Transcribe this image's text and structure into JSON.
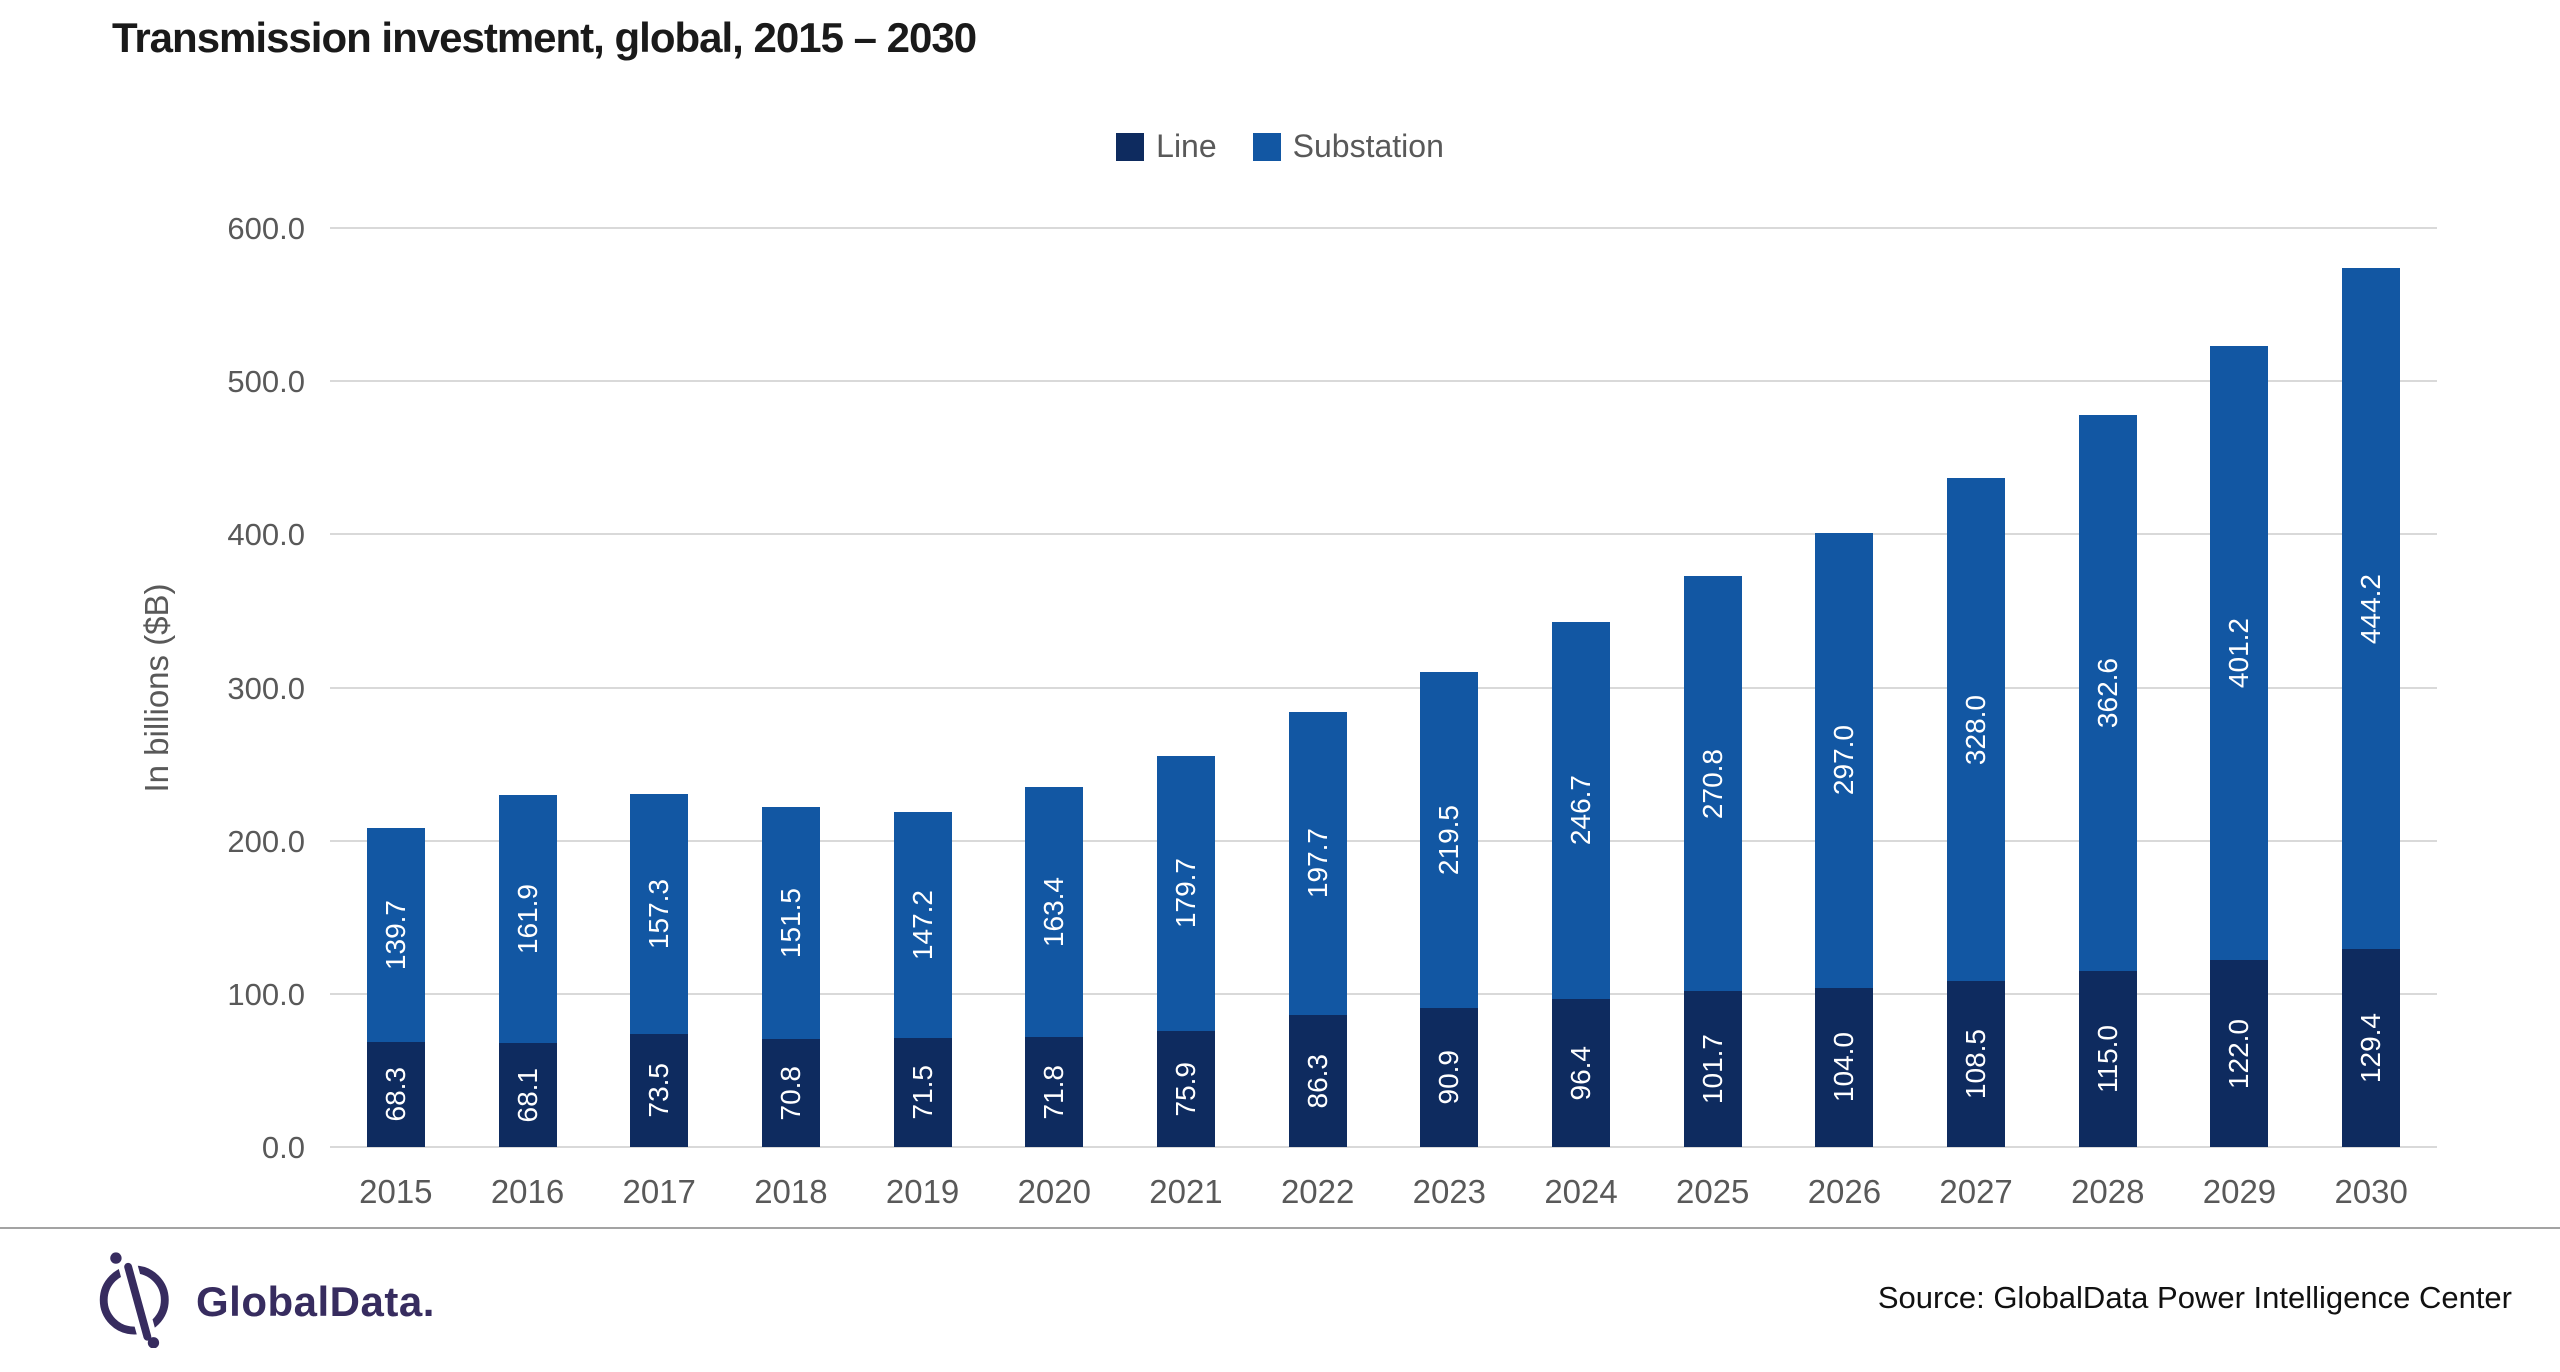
{
  "title": "Transmission investment, global, 2015 – 2030",
  "legend": {
    "items": [
      {
        "label": "Line",
        "color": "#0e2b5f"
      },
      {
        "label": "Substation",
        "color": "#1257a3"
      }
    ]
  },
  "y_axis": {
    "title": "In billions ($B)"
  },
  "footer": {
    "brand": "GlobalData.",
    "source": "Source: GlobalData Power Intelligence Center"
  },
  "colors": {
    "line_series": "#0e2b5f",
    "substation_series": "#1257a3",
    "gridline": "#d9d9d9",
    "axis_text": "#595959",
    "separator": "#a3a3a3",
    "brand_purple": "#372c5f",
    "value_label": "#ffffff"
  },
  "chart_data": {
    "type": "bar",
    "stacked": true,
    "title": "Transmission investment, global, 2015 – 2030",
    "xlabel": "",
    "ylabel": "In billions ($B)",
    "ylim": [
      0,
      600
    ],
    "ytick_step": 100,
    "grid": true,
    "legend_position": "top-center",
    "categories": [
      "2015",
      "2016",
      "2017",
      "2018",
      "2019",
      "2020",
      "2021",
      "2022",
      "2023",
      "2024",
      "2025",
      "2026",
      "2027",
      "2028",
      "2029",
      "2030"
    ],
    "series": [
      {
        "name": "Line",
        "color": "#0e2b5f",
        "values": [
          68.3,
          68.1,
          73.5,
          70.8,
          71.5,
          71.8,
          75.9,
          86.3,
          90.9,
          96.4,
          101.7,
          104.0,
          108.5,
          115.0,
          122.0,
          129.4
        ]
      },
      {
        "name": "Substation",
        "color": "#1257a3",
        "values": [
          139.7,
          161.9,
          157.3,
          151.5,
          147.2,
          163.4,
          179.7,
          197.7,
          219.5,
          246.7,
          270.8,
          297.0,
          328.0,
          362.6,
          401.2,
          444.2
        ]
      }
    ]
  }
}
